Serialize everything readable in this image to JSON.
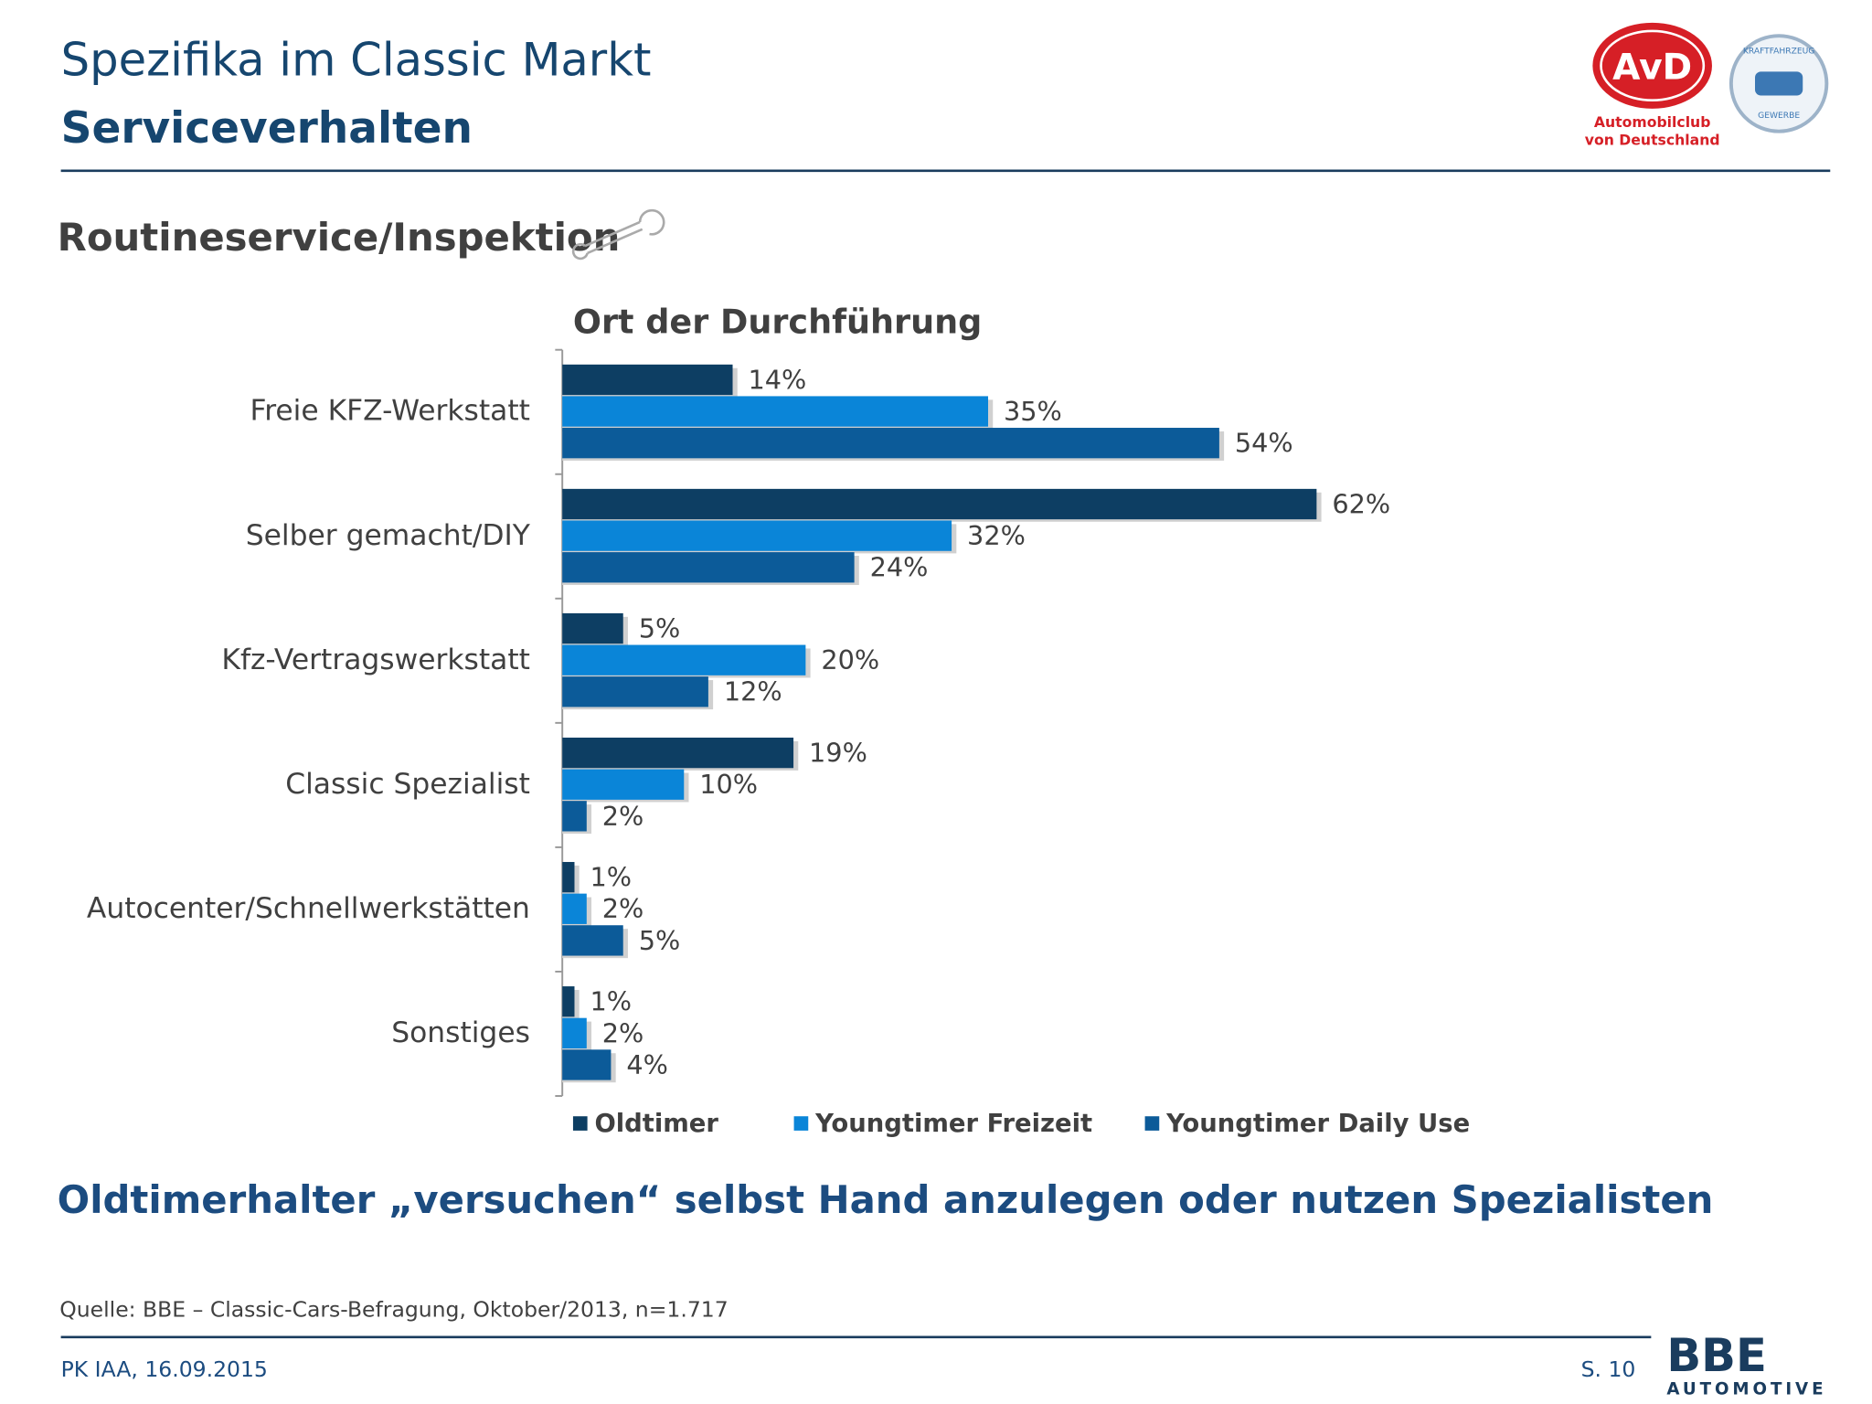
{
  "header": {
    "title": "Spezifika im Classic Markt",
    "subtitle": "Serviceverhalten"
  },
  "logos": {
    "avd": "AvD",
    "avd_caption_1": "Automobilclub",
    "avd_caption_2": "von Deutschland",
    "kfz_top": "KRAFTFAHRZEUG",
    "kfz_bottom": "GEWERBE",
    "bbe": "BBE",
    "bbe_sub": "AUTOMOTIVE"
  },
  "section_title": "Routineservice/Inspektion",
  "chart_data": {
    "type": "bar",
    "orientation": "horizontal",
    "title": "Ort der Durchführung",
    "categories": [
      "Freie KFZ-Werkstatt",
      "Selber gemacht/DIY",
      "Kfz-Vertragswerkstatt",
      "Classic Spezialist",
      "Autocenter/Schnellwerkstätten",
      "Sonstiges"
    ],
    "series": [
      {
        "name": "Oldtimer",
        "color": "#0d3e63",
        "values": [
          14,
          62,
          5,
          19,
          1,
          1
        ],
        "value_labels": [
          "14%",
          "62%",
          "5%",
          "19%",
          "1%",
          "1%"
        ]
      },
      {
        "name": "Youngtimer Freizeit",
        "color": "#0a85d8",
        "values": [
          35,
          32,
          20,
          10,
          2,
          2
        ],
        "value_labels": [
          "35%",
          "32%",
          "20%",
          "10%",
          "2%",
          "2%"
        ]
      },
      {
        "name": "Youngtimer Daily Use",
        "color": "#0c5b99",
        "values": [
          54,
          24,
          12,
          2,
          5,
          4
        ],
        "value_labels": [
          "54%",
          "24%",
          "12%",
          "2%",
          "5%",
          "4%"
        ]
      }
    ],
    "xlim": [
      0,
      70
    ],
    "legend": "bottom"
  },
  "conclusion": "Oldtimerhalter „versuchen“ selbst Hand anzulegen oder nutzen Spezialisten",
  "source": "Quelle: BBE – Classic-Cars-Befragung, Oktober/2013, n=1.717",
  "footer": {
    "left": "PK IAA, 16.09.2015",
    "page": "S. 10"
  }
}
